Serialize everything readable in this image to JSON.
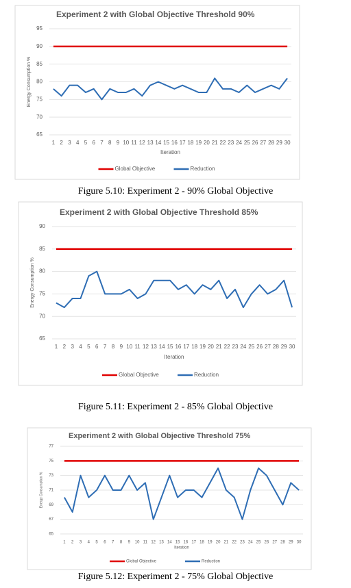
{
  "chart_data": [
    {
      "type": "line",
      "title": "Experiment 2 with Global Objective Threshold 90%",
      "caption": "Figure 5.10: Experiment 2 - 90% Global Objective",
      "x_label": "Iteration",
      "y_label": "Energy Consumption %",
      "categories": [
        "1",
        "2",
        "3",
        "4",
        "5",
        "6",
        "7",
        "8",
        "9",
        "10",
        "11",
        "12",
        "13",
        "14",
        "15",
        "16",
        "17",
        "18",
        "19",
        "20",
        "21",
        "22",
        "23",
        "24",
        "25",
        "26",
        "27",
        "28",
        "29",
        "30"
      ],
      "series": [
        {
          "name": "Global Objective",
          "color": "#e00000",
          "values": [
            90,
            90,
            90,
            90,
            90,
            90,
            90,
            90,
            90,
            90,
            90,
            90,
            90,
            90,
            90,
            90,
            90,
            90,
            90,
            90,
            90,
            90,
            90,
            90,
            90,
            90,
            90,
            90,
            90,
            90
          ]
        },
        {
          "name": "Reduction",
          "color": "#2e6db4",
          "values": [
            78,
            76,
            79,
            79,
            77,
            78,
            75,
            78,
            77,
            77,
            78,
            76,
            79,
            80,
            79,
            78,
            79,
            78,
            77,
            77,
            81,
            78,
            78,
            77,
            79,
            77,
            78,
            79,
            78,
            81
          ]
        }
      ],
      "ylim": [
        65,
        95
      ],
      "yticks": [
        65,
        70,
        75,
        80,
        85,
        90,
        95
      ],
      "grid": true,
      "legend": "bottom"
    },
    {
      "type": "line",
      "title": "Experiment 2 with Global Objective Threshold 85%",
      "caption": "Figure 5.11: Experiment 2 - 85% Global Objective",
      "x_label": "Iteration",
      "y_label": "Energy Consumption %",
      "categories": [
        "1",
        "2",
        "3",
        "4",
        "5",
        "6",
        "7",
        "8",
        "9",
        "10",
        "11",
        "12",
        "13",
        "14",
        "15",
        "16",
        "17",
        "18",
        "19",
        "20",
        "21",
        "22",
        "23",
        "24",
        "25",
        "26",
        "27",
        "28",
        "29",
        "30"
      ],
      "series": [
        {
          "name": "Global Objective",
          "color": "#e00000",
          "values": [
            85,
            85,
            85,
            85,
            85,
            85,
            85,
            85,
            85,
            85,
            85,
            85,
            85,
            85,
            85,
            85,
            85,
            85,
            85,
            85,
            85,
            85,
            85,
            85,
            85,
            85,
            85,
            85,
            85,
            85
          ]
        },
        {
          "name": "Reduction",
          "color": "#2e6db4",
          "values": [
            73,
            72,
            74,
            74,
            79,
            80,
            75,
            75,
            75,
            76,
            74,
            75,
            78,
            78,
            78,
            76,
            77,
            75,
            77,
            76,
            78,
            74,
            76,
            72,
            75,
            77,
            75,
            76,
            78,
            72
          ]
        }
      ],
      "ylim": [
        65,
        90
      ],
      "yticks": [
        65,
        70,
        75,
        80,
        85,
        90
      ],
      "grid": true,
      "legend": "bottom"
    },
    {
      "type": "line",
      "title": "Experiment 2 with Global Objective Threshold 75%",
      "caption": "Figure 5.12: Experiment 2 - 75% Global Objective",
      "x_label": "Iteration",
      "y_label": "Energy Consumption %",
      "categories": [
        "1",
        "2",
        "3",
        "4",
        "5",
        "6",
        "7",
        "8",
        "9",
        "10",
        "11",
        "12",
        "13",
        "14",
        "15",
        "16",
        "17",
        "18",
        "19",
        "20",
        "21",
        "22",
        "23",
        "24",
        "25",
        "26",
        "27",
        "28",
        "29",
        "30"
      ],
      "series": [
        {
          "name": "Global Objective",
          "color": "#e00000",
          "values": [
            75,
            75,
            75,
            75,
            75,
            75,
            75,
            75,
            75,
            75,
            75,
            75,
            75,
            75,
            75,
            75,
            75,
            75,
            75,
            75,
            75,
            75,
            75,
            75,
            75,
            75,
            75,
            75,
            75,
            75
          ]
        },
        {
          "name": "Reduction",
          "color": "#2e6db4",
          "values": [
            70,
            68,
            73,
            70,
            71,
            73,
            71,
            71,
            73,
            71,
            72,
            67,
            70,
            73,
            70,
            71,
            71,
            70,
            72,
            74,
            71,
            70,
            67,
            71,
            74,
            73,
            71,
            69,
            72,
            71
          ]
        }
      ],
      "ylim": [
        65,
        77
      ],
      "yticks": [
        65,
        67,
        69,
        71,
        73,
        75,
        77
      ],
      "grid": true,
      "legend": "bottom"
    }
  ]
}
